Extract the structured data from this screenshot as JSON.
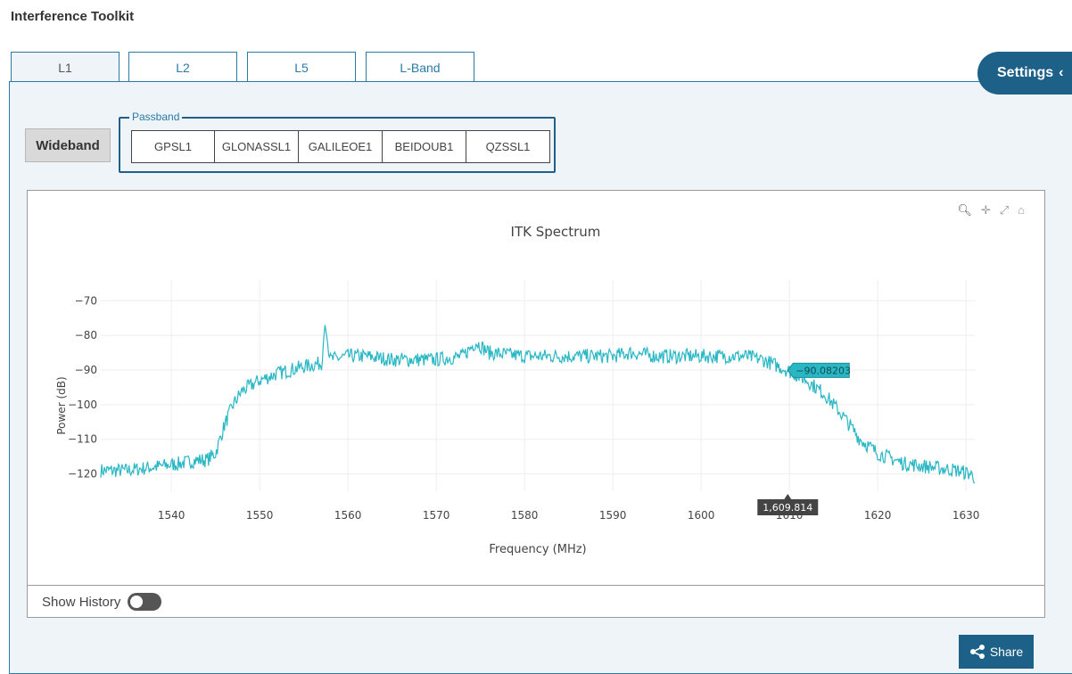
{
  "app": {
    "title": "Interference Toolkit"
  },
  "tabs": [
    {
      "label": "L1",
      "active": true
    },
    {
      "label": "L2",
      "active": false
    },
    {
      "label": "L5",
      "active": false
    },
    {
      "label": "L-Band",
      "active": false
    }
  ],
  "settings": {
    "label": "Settings"
  },
  "controls": {
    "wideband_label": "Wideband",
    "passband_legend": "Passband",
    "passband_options": [
      "GPSL1",
      "GLONASSL1",
      "GALILEOE1",
      "BEIDOUB1",
      "QZSSL1"
    ]
  },
  "history": {
    "label": "Show History",
    "enabled": false
  },
  "share": {
    "label": "Share"
  },
  "colors": {
    "trace": "#2ab7c4",
    "accent": "#1d6189"
  },
  "chart_data": {
    "type": "line",
    "title": "ITK Spectrum",
    "xlabel": "Frequency (MHz)",
    "ylabel": "Power (dB)",
    "xlim": [
      1532,
      1631
    ],
    "ylim": [
      -125,
      -64
    ],
    "xticks": [
      1540,
      1550,
      1560,
      1570,
      1580,
      1590,
      1600,
      1610,
      1620,
      1630
    ],
    "yticks": [
      -70,
      -80,
      -90,
      -100,
      -110,
      -120
    ],
    "ytick_labels": [
      "−70",
      "−80",
      "−90",
      "−100",
      "−110",
      "−120"
    ],
    "grid": true,
    "series": [
      {
        "x": [
          1532,
          1535,
          1538,
          1541,
          1543,
          1544,
          1545,
          1546,
          1547,
          1548,
          1550,
          1552,
          1555,
          1557,
          1557.4,
          1558,
          1560,
          1562,
          1565,
          1570,
          1573,
          1574.5,
          1576,
          1580,
          1585,
          1590,
          1592,
          1595,
          1600,
          1605,
          1607,
          1609.814,
          1612,
          1614,
          1616,
          1618,
          1620,
          1623,
          1626,
          1629,
          1630.5,
          1631
        ],
        "y": [
          -119,
          -119,
          -118,
          -117,
          -116,
          -116,
          -114,
          -106,
          -100,
          -96,
          -93,
          -91,
          -89,
          -88,
          -77,
          -87,
          -86,
          -86,
          -87,
          -87,
          -86,
          -82,
          -85,
          -86,
          -86,
          -86,
          -85,
          -86,
          -86,
          -86,
          -87,
          -90.08,
          -93,
          -97,
          -103,
          -110,
          -114,
          -117,
          -118,
          -119,
          -120,
          -121
        ]
      }
    ],
    "hover": {
      "x_label": "1,609.814",
      "y_label": "−90.08203"
    }
  }
}
